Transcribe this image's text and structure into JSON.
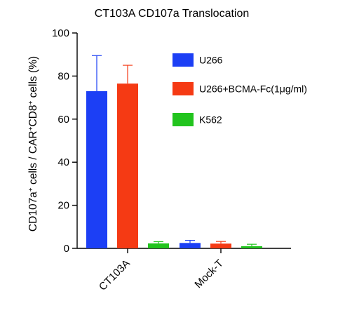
{
  "chart_data": {
    "type": "bar",
    "title": "CT103A CD107a Translocation",
    "ylabel": {
      "part1": "CD107a",
      "sup1": "+",
      "part2": " cells / CAR",
      "sup2": "+",
      "part3": "CD8",
      "sup3": "+",
      "part4": " cells (%)"
    },
    "xlabel": "",
    "ylim": [
      0,
      100
    ],
    "yticks": [
      0,
      20,
      40,
      60,
      80,
      100
    ],
    "categories": [
      "CT103A",
      "Mock-T"
    ],
    "series": [
      {
        "name": "U266",
        "color": "#1c3ff5",
        "values": [
          73,
          2.5
        ],
        "errors": [
          16.5,
          1.2
        ]
      },
      {
        "name": "U266+BCMA-Fc(1μg/ml)",
        "color": "#f53a14",
        "values": [
          76.5,
          2.2
        ],
        "errors": [
          8.5,
          1.0
        ]
      },
      {
        "name": "K562",
        "color": "#22c41e",
        "values": [
          2.3,
          1.0
        ],
        "errors": [
          0.8,
          0.9
        ]
      }
    ],
    "legend_position": "top-right",
    "grid": false
  }
}
